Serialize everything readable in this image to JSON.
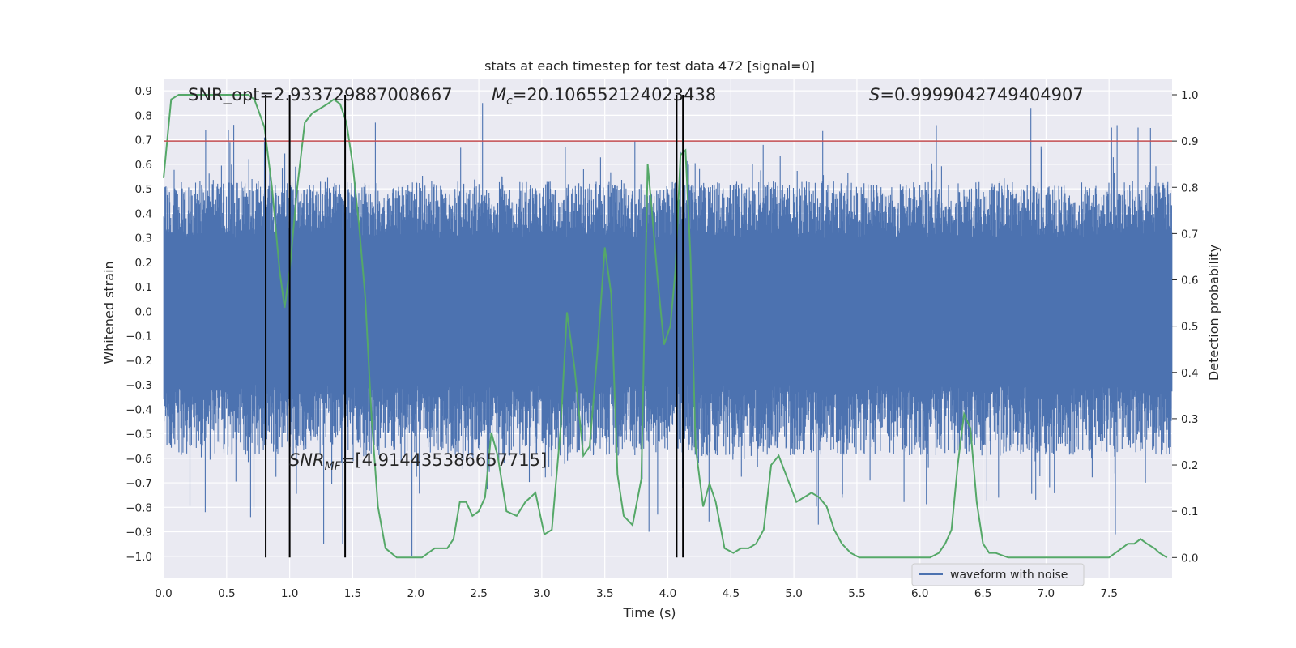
{
  "chart_data": {
    "type": "line",
    "title": "stats at each timestep for test data 472 [signal=0]",
    "xlabel": "Time (s)",
    "ylabel": "Whitened strain",
    "y2label": "Detection probability",
    "xlim": [
      0,
      8
    ],
    "ylim": [
      -1.09,
      0.95
    ],
    "y2lim": [
      -0.045,
      1.035
    ],
    "xticks": [
      "0.0",
      "0.5",
      "1.0",
      "1.5",
      "2.0",
      "2.5",
      "3.0",
      "3.5",
      "4.0",
      "4.5",
      "5.0",
      "5.5",
      "6.0",
      "6.5",
      "7.0",
      "7.5"
    ],
    "yticks": [
      "0.9",
      "0.8",
      "0.7",
      "0.6",
      "0.5",
      "0.4",
      "0.3",
      "0.2",
      "0.1",
      "0.0",
      "-0.1",
      "-0.2",
      "-0.3",
      "-0.4",
      "-0.5",
      "-0.6",
      "-0.7",
      "-0.8",
      "-0.9",
      "-1.0"
    ],
    "y2ticks": [
      "1.0",
      "0.9",
      "0.8",
      "0.7",
      "0.6",
      "0.5",
      "0.4",
      "0.3",
      "0.2",
      "0.1",
      "0.0"
    ],
    "grid": true,
    "legend": {
      "position": "lower-right",
      "entries": [
        "waveform with noise"
      ]
    },
    "colors": {
      "waveform": "#4c72b0",
      "probability": "#55a868",
      "threshold": "#c44e52",
      "markers": "#000000",
      "background": "#eaeaf2",
      "grid": "#ffffff"
    },
    "annotations": {
      "snr_opt": "SNR_opt=2.933729887008667",
      "mc": "=20.106552124023438",
      "mc_symbol": "M",
      "mc_sub": "c",
      "s": "=0.9999042749404907",
      "s_symbol": "S",
      "snr_mf": "=[4.914435386657715]",
      "snr_mf_symbol": "SNR",
      "snr_mf_sub": "MF"
    },
    "threshold_probability": 0.9,
    "vertical_markers_s": [
      0.81,
      1.0,
      1.44,
      4.07,
      4.12
    ],
    "waveform": {
      "name": "waveform with noise",
      "band_half_width": 0.3,
      "typical_peak": 0.45,
      "max_value": 0.85,
      "min_value": -1.0,
      "outliers": [
        {
          "t": 0.33,
          "v": -0.82
        },
        {
          "t": 0.69,
          "v": -0.84
        },
        {
          "t": 0.8,
          "v": 0.71
        },
        {
          "t": 1.27,
          "v": -0.95
        },
        {
          "t": 1.42,
          "v": -0.95
        },
        {
          "t": 1.68,
          "v": 0.77
        },
        {
          "t": 1.97,
          "v": -1.0
        },
        {
          "t": 2.53,
          "v": 0.85
        },
        {
          "t": 3.85,
          "v": -0.9
        },
        {
          "t": 4.1,
          "v": 0.65
        },
        {
          "t": 6.13,
          "v": 0.76
        },
        {
          "t": 6.88,
          "v": 0.83
        },
        {
          "t": 7.55,
          "v": -0.91
        },
        {
          "t": 7.52,
          "v": 0.75
        },
        {
          "t": 7.73,
          "v": 0.75
        }
      ]
    },
    "probability": {
      "name": "Detection probability",
      "x": [
        0,
        0.06,
        0.12,
        0.2,
        0.3,
        0.4,
        0.5,
        0.6,
        0.67,
        0.72,
        0.8,
        0.86,
        0.92,
        0.96,
        1.0,
        1.06,
        1.12,
        1.18,
        1.24,
        1.3,
        1.35,
        1.4,
        1.45,
        1.5,
        1.55,
        1.6,
        1.65,
        1.7,
        1.76,
        1.85,
        1.95,
        2.0,
        2.05,
        2.1,
        2.15,
        2.25,
        2.3,
        2.35,
        2.4,
        2.45,
        2.5,
        2.55,
        2.6,
        2.65,
        2.72,
        2.8,
        2.87,
        2.95,
        3.02,
        3.08,
        3.15,
        3.2,
        3.26,
        3.33,
        3.38,
        3.44,
        3.5,
        3.55,
        3.6,
        3.65,
        3.72,
        3.79,
        3.84,
        3.87,
        3.92,
        3.97,
        4.02,
        4.06,
        4.1,
        4.14,
        4.18,
        4.22,
        4.28,
        4.33,
        4.38,
        4.45,
        4.52,
        4.58,
        4.64,
        4.7,
        4.76,
        4.82,
        4.88,
        4.95,
        5.02,
        5.08,
        5.14,
        5.2,
        5.26,
        5.32,
        5.38,
        5.45,
        5.52,
        5.6,
        5.7,
        5.8,
        5.9,
        6.0,
        6.08,
        6.15,
        6.2,
        6.25,
        6.3,
        6.35,
        6.4,
        6.45,
        6.5,
        6.55,
        6.6,
        6.7,
        6.8,
        6.9,
        7.0,
        7.1,
        7.2,
        7.3,
        7.4,
        7.5,
        7.55,
        7.6,
        7.65,
        7.7,
        7.75,
        7.8,
        7.86,
        7.9,
        7.96
      ],
      "values": [
        0.82,
        0.99,
        1.0,
        1.0,
        1.0,
        1.0,
        1.0,
        1.0,
        1.0,
        0.99,
        0.93,
        0.8,
        0.62,
        0.54,
        0.62,
        0.8,
        0.94,
        0.96,
        0.97,
        0.98,
        0.99,
        0.98,
        0.94,
        0.85,
        0.72,
        0.56,
        0.3,
        0.11,
        0.02,
        0.0,
        0.0,
        0.0,
        0.0,
        0.01,
        0.02,
        0.02,
        0.04,
        0.12,
        0.12,
        0.09,
        0.1,
        0.13,
        0.27,
        0.22,
        0.1,
        0.09,
        0.12,
        0.14,
        0.05,
        0.06,
        0.28,
        0.53,
        0.41,
        0.22,
        0.24,
        0.44,
        0.67,
        0.57,
        0.18,
        0.09,
        0.07,
        0.17,
        0.85,
        0.76,
        0.6,
        0.46,
        0.5,
        0.62,
        0.87,
        0.88,
        0.65,
        0.24,
        0.11,
        0.16,
        0.12,
        0.02,
        0.01,
        0.02,
        0.02,
        0.03,
        0.06,
        0.2,
        0.22,
        0.17,
        0.12,
        0.13,
        0.14,
        0.13,
        0.11,
        0.06,
        0.03,
        0.01,
        0.0,
        0.0,
        0.0,
        0.0,
        0.0,
        0.0,
        0.0,
        0.01,
        0.03,
        0.06,
        0.2,
        0.31,
        0.28,
        0.12,
        0.03,
        0.01,
        0.01,
        0.0,
        0.0,
        0.0,
        0.0,
        0.0,
        0.0,
        0.0,
        0.0,
        0.0,
        0.01,
        0.02,
        0.03,
        0.03,
        0.04,
        0.03,
        0.02,
        0.01,
        0.0
      ]
    }
  }
}
